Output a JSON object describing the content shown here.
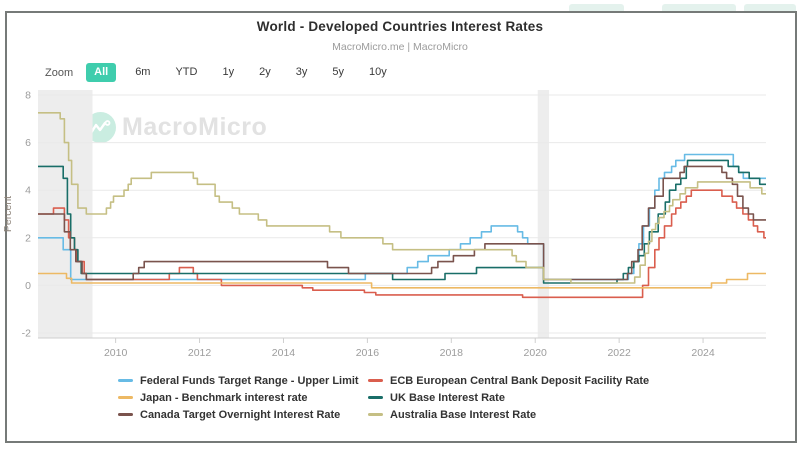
{
  "header": {
    "title": "World - Developed Countries Interest Rates",
    "subtitle": "MacroMicro.me | MacroMicro"
  },
  "toolbar": {
    "zoom_label": "Zoom",
    "buttons": [
      {
        "label": "All",
        "active": true
      },
      {
        "label": "6m",
        "active": false
      },
      {
        "label": "YTD",
        "active": false
      },
      {
        "label": "1y",
        "active": false
      },
      {
        "label": "2y",
        "active": false
      },
      {
        "label": "3y",
        "active": false
      },
      {
        "label": "5y",
        "active": false
      },
      {
        "label": "10y",
        "active": false
      }
    ],
    "active_color": "#3fcdad"
  },
  "watermark": {
    "text": "MacroMicro"
  },
  "chart_data": {
    "type": "line",
    "interpolation": "step-after",
    "title": "World - Developed Countries Interest Rates",
    "xlabel": "",
    "ylabel": "Percent",
    "x_domain": [
      2008.15,
      2025.5
    ],
    "ylim": [
      -2,
      8
    ],
    "y_ticks": [
      -2,
      0,
      2,
      4,
      6,
      8
    ],
    "x_ticks": [
      2010,
      2012,
      2014,
      2016,
      2018,
      2020,
      2022,
      2024
    ],
    "grid": "horizontal-only",
    "recession_bands": [
      [
        2008.15,
        2009.45
      ],
      [
        2020.06,
        2020.33
      ]
    ],
    "band_color": "#ededed",
    "legend_position": "bottom",
    "series": [
      {
        "name": "Federal Funds Target Range - Upper Limit",
        "color": "#67bbe5",
        "points": [
          [
            2008.15,
            2
          ],
          [
            2008.75,
            1.5
          ],
          [
            2008.93,
            0.25
          ],
          [
            2015.95,
            0.5
          ],
          [
            2016.95,
            0.75
          ],
          [
            2017.2,
            1
          ],
          [
            2017.45,
            1.25
          ],
          [
            2017.95,
            1.5
          ],
          [
            2018.22,
            1.75
          ],
          [
            2018.45,
            2
          ],
          [
            2018.72,
            2.25
          ],
          [
            2018.95,
            2.5
          ],
          [
            2019.58,
            2.25
          ],
          [
            2019.7,
            2
          ],
          [
            2019.82,
            1.75
          ],
          [
            2020.2,
            0.25
          ],
          [
            2022.22,
            0.5
          ],
          [
            2022.35,
            1
          ],
          [
            2022.47,
            1.75
          ],
          [
            2022.58,
            2.5
          ],
          [
            2022.72,
            3.25
          ],
          [
            2022.85,
            4
          ],
          [
            2022.95,
            4.5
          ],
          [
            2023.08,
            4.75
          ],
          [
            2023.25,
            5
          ],
          [
            2023.35,
            5.25
          ],
          [
            2023.56,
            5.5
          ],
          [
            2024.72,
            5
          ],
          [
            2024.85,
            4.75
          ],
          [
            2024.96,
            4.5
          ]
        ]
      },
      {
        "name": "ECB European Central Bank Deposit Facility Rate",
        "color": "#da5e4e",
        "points": [
          [
            2008.15,
            3
          ],
          [
            2008.52,
            3.25
          ],
          [
            2008.78,
            2.75
          ],
          [
            2008.88,
            2
          ],
          [
            2009.02,
            1.5
          ],
          [
            2009.08,
            1
          ],
          [
            2009.25,
            0.5
          ],
          [
            2009.3,
            0.25
          ],
          [
            2011.28,
            0.5
          ],
          [
            2011.52,
            0.75
          ],
          [
            2011.85,
            0.5
          ],
          [
            2011.95,
            0.25
          ],
          [
            2012.52,
            0
          ],
          [
            2014.45,
            -0.1
          ],
          [
            2014.7,
            -0.2
          ],
          [
            2015.93,
            -0.3
          ],
          [
            2016.2,
            -0.4
          ],
          [
            2019.7,
            -0.5
          ],
          [
            2022.56,
            0
          ],
          [
            2022.7,
            0.75
          ],
          [
            2022.85,
            1.5
          ],
          [
            2022.95,
            2
          ],
          [
            2023.08,
            2.5
          ],
          [
            2023.25,
            3
          ],
          [
            2023.35,
            3.25
          ],
          [
            2023.47,
            3.5
          ],
          [
            2023.6,
            3.75
          ],
          [
            2023.72,
            4
          ],
          [
            2024.45,
            3.75
          ],
          [
            2024.7,
            3.5
          ],
          [
            2024.8,
            3.25
          ],
          [
            2024.95,
            3
          ],
          [
            2025.08,
            2.75
          ],
          [
            2025.2,
            2.5
          ],
          [
            2025.3,
            2.25
          ],
          [
            2025.45,
            2
          ]
        ]
      },
      {
        "name": "Japan - Benchmark interest rate",
        "color": "#edb964",
        "points": [
          [
            2008.15,
            0.5
          ],
          [
            2008.83,
            0.3
          ],
          [
            2008.95,
            0.1
          ],
          [
            2016.1,
            -0.1
          ],
          [
            2024.2,
            0.1
          ],
          [
            2024.56,
            0.25
          ],
          [
            2025.06,
            0.5
          ]
        ]
      },
      {
        "name": "UK Base Interest Rate",
        "color": "#196e68",
        "points": [
          [
            2008.15,
            5
          ],
          [
            2008.75,
            4.5
          ],
          [
            2008.85,
            3
          ],
          [
            2008.93,
            2
          ],
          [
            2009.02,
            1.5
          ],
          [
            2009.1,
            1
          ],
          [
            2009.18,
            0.5
          ],
          [
            2016.6,
            0.25
          ],
          [
            2017.85,
            0.5
          ],
          [
            2018.6,
            0.75
          ],
          [
            2020.2,
            0.1
          ],
          [
            2021.95,
            0.25
          ],
          [
            2022.1,
            0.5
          ],
          [
            2022.22,
            0.75
          ],
          [
            2022.35,
            1
          ],
          [
            2022.47,
            1.25
          ],
          [
            2022.6,
            1.75
          ],
          [
            2022.72,
            2.25
          ],
          [
            2022.93,
            3
          ],
          [
            2023.1,
            3.5
          ],
          [
            2023.2,
            4
          ],
          [
            2023.35,
            4.25
          ],
          [
            2023.47,
            4.5
          ],
          [
            2023.6,
            5
          ],
          [
            2023.63,
            5.25
          ],
          [
            2024.6,
            5
          ],
          [
            2024.85,
            4.75
          ],
          [
            2025.1,
            4.5
          ],
          [
            2025.35,
            4.25
          ]
        ]
      },
      {
        "name": "Canada Target Overnight Interest Rate",
        "color": "#7a534d",
        "points": [
          [
            2008.15,
            3
          ],
          [
            2008.78,
            2.25
          ],
          [
            2008.92,
            1.5
          ],
          [
            2009.05,
            1
          ],
          [
            2009.2,
            0.5
          ],
          [
            2009.3,
            0.25
          ],
          [
            2010.42,
            0.5
          ],
          [
            2010.55,
            0.75
          ],
          [
            2010.68,
            1
          ],
          [
            2015.05,
            0.75
          ],
          [
            2015.55,
            0.5
          ],
          [
            2017.53,
            0.75
          ],
          [
            2017.68,
            1
          ],
          [
            2018.05,
            1.25
          ],
          [
            2018.55,
            1.5
          ],
          [
            2018.8,
            1.75
          ],
          [
            2020.2,
            0.25
          ],
          [
            2022.2,
            0.5
          ],
          [
            2022.3,
            1
          ],
          [
            2022.45,
            1.5
          ],
          [
            2022.55,
            2.5
          ],
          [
            2022.7,
            3.25
          ],
          [
            2022.85,
            3.75
          ],
          [
            2023.05,
            4.5
          ],
          [
            2023.45,
            4.75
          ],
          [
            2023.55,
            5
          ],
          [
            2024.45,
            4.75
          ],
          [
            2024.56,
            4.5
          ],
          [
            2024.7,
            4.25
          ],
          [
            2024.82,
            3.75
          ],
          [
            2024.95,
            3.25
          ],
          [
            2025.08,
            3
          ],
          [
            2025.2,
            2.75
          ]
        ]
      },
      {
        "name": "Australia Base Interest Rate",
        "color": "#c5bf84",
        "points": [
          [
            2008.15,
            7.25
          ],
          [
            2008.68,
            7
          ],
          [
            2008.78,
            6
          ],
          [
            2008.88,
            5.25
          ],
          [
            2008.95,
            4.25
          ],
          [
            2009.1,
            3.25
          ],
          [
            2009.3,
            3
          ],
          [
            2009.78,
            3.25
          ],
          [
            2009.88,
            3.5
          ],
          [
            2009.95,
            3.75
          ],
          [
            2010.2,
            4
          ],
          [
            2010.3,
            4.25
          ],
          [
            2010.37,
            4.5
          ],
          [
            2010.85,
            4.75
          ],
          [
            2011.85,
            4.5
          ],
          [
            2011.95,
            4.25
          ],
          [
            2012.37,
            3.75
          ],
          [
            2012.47,
            3.5
          ],
          [
            2012.78,
            3.25
          ],
          [
            2012.95,
            3
          ],
          [
            2013.4,
            2.75
          ],
          [
            2013.6,
            2.5
          ],
          [
            2015.1,
            2.25
          ],
          [
            2015.37,
            2
          ],
          [
            2016.37,
            1.75
          ],
          [
            2016.6,
            1.5
          ],
          [
            2019.45,
            1.25
          ],
          [
            2019.55,
            1
          ],
          [
            2019.78,
            0.75
          ],
          [
            2020.2,
            0.25
          ],
          [
            2020.85,
            0.1
          ],
          [
            2022.37,
            0.35
          ],
          [
            2022.5,
            0.85
          ],
          [
            2022.62,
            1.35
          ],
          [
            2022.7,
            1.85
          ],
          [
            2022.78,
            2.35
          ],
          [
            2022.87,
            2.6
          ],
          [
            2022.95,
            2.85
          ],
          [
            2023.07,
            3.1
          ],
          [
            2023.2,
            3.35
          ],
          [
            2023.28,
            3.6
          ],
          [
            2023.45,
            3.85
          ],
          [
            2023.58,
            4.1
          ],
          [
            2023.87,
            4.35
          ],
          [
            2025.12,
            4.1
          ],
          [
            2025.4,
            3.85
          ]
        ]
      }
    ]
  },
  "legend": {
    "items": [
      {
        "label": "Federal Funds Target Range - Upper Limit"
      },
      {
        "label": "ECB European Central Bank Deposit Facility Rate"
      },
      {
        "label": "Japan - Benchmark interest rate"
      },
      {
        "label": "UK Base Interest Rate"
      },
      {
        "label": "Canada Target Overnight Interest Rate"
      },
      {
        "label": "Australia Base Interest Rate"
      }
    ]
  }
}
